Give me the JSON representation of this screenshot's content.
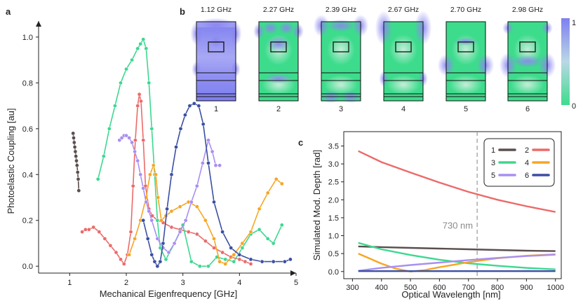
{
  "panel_labels": {
    "a": "a",
    "b": "b",
    "c": "c"
  },
  "colors": {
    "mode1": "#5a4e4e",
    "mode2": "#ec6a6a",
    "mode3": "#3dd890",
    "mode4": "#f6a623",
    "mode5": "#a98ff2",
    "mode6": "#3b4fa3",
    "map_low": "#3ddc8c",
    "map_high": "#7f7ff0"
  },
  "chart_data": [
    {
      "id": "a",
      "type": "scatter",
      "xlabel": "Mechanical Eigenfrequency [GHz]",
      "ylabel": "Photoelastic Coupling [au]",
      "xlim": [
        0.45,
        5.0
      ],
      "ylim": [
        -0.03,
        1.07
      ],
      "xticks": [
        "1",
        "2",
        "3",
        "4",
        "5"
      ],
      "yticks": [
        "0.0",
        "0.2",
        "0.4",
        "0.6",
        "0.8",
        "1.0"
      ],
      "series": [
        {
          "name": "1",
          "x": [
            1.06,
            1.07,
            1.08,
            1.09,
            1.1,
            1.11,
            1.12,
            1.13,
            1.14,
            1.15,
            1.16
          ],
          "y": [
            0.58,
            0.56,
            0.54,
            0.52,
            0.5,
            0.48,
            0.46,
            0.44,
            0.41,
            0.38,
            0.33
          ]
        },
        {
          "name": "2",
          "x": [
            1.22,
            1.28,
            1.34,
            1.42,
            1.52,
            1.62,
            1.72,
            1.82,
            1.9,
            1.96,
            2.02,
            2.08,
            2.12,
            2.16,
            2.2,
            2.23,
            2.26,
            2.3,
            2.34,
            2.4,
            2.46,
            2.55,
            2.65,
            2.8,
            2.95,
            3.1,
            3.25,
            3.4,
            3.55,
            3.7,
            3.85,
            4.0,
            4.1,
            4.2
          ],
          "y": [
            0.15,
            0.16,
            0.16,
            0.17,
            0.15,
            0.12,
            0.09,
            0.06,
            0.03,
            0.01,
            0.05,
            0.15,
            0.35,
            0.55,
            0.7,
            0.75,
            0.72,
            0.55,
            0.35,
            0.25,
            0.22,
            0.2,
            0.19,
            0.17,
            0.16,
            0.15,
            0.14,
            0.11,
            0.08,
            0.06,
            0.04,
            0.03,
            0.02,
            0.01
          ]
        },
        {
          "name": "3",
          "x": [
            1.5,
            1.6,
            1.7,
            1.8,
            1.9,
            2.0,
            2.1,
            2.2,
            2.25,
            2.3,
            2.35,
            2.4,
            2.45,
            2.5,
            2.55,
            2.6,
            2.7,
            2.85,
            3.0,
            3.15,
            3.3,
            3.45,
            3.6,
            3.75,
            3.9,
            4.05,
            4.2,
            4.35,
            4.5,
            4.6,
            4.75
          ],
          "y": [
            0.38,
            0.48,
            0.6,
            0.7,
            0.8,
            0.86,
            0.9,
            0.95,
            0.97,
            0.99,
            0.95,
            0.8,
            0.6,
            0.4,
            0.2,
            0.08,
            0.03,
            0.1,
            0.18,
            0.02,
            0.0,
            0.0,
            0.04,
            0.03,
            0.02,
            0.08,
            0.14,
            0.16,
            0.12,
            0.1,
            0.18
          ]
        },
        {
          "name": "4",
          "x": [
            2.05,
            2.15,
            2.25,
            2.35,
            2.42,
            2.48,
            2.52,
            2.56,
            2.62,
            2.7,
            2.8,
            2.95,
            3.1,
            3.25,
            3.4,
            3.55,
            3.65,
            3.75,
            3.9,
            4.05,
            4.2,
            4.35,
            4.5,
            4.65,
            4.75
          ],
          "y": [
            0.05,
            0.12,
            0.2,
            0.3,
            0.4,
            0.44,
            0.4,
            0.3,
            0.2,
            0.22,
            0.24,
            0.26,
            0.28,
            0.26,
            0.2,
            0.12,
            0.02,
            0.01,
            0.05,
            0.1,
            0.15,
            0.25,
            0.32,
            0.38,
            0.36
          ]
        },
        {
          "name": "5",
          "x": [
            1.88,
            1.92,
            1.96,
            2.0,
            2.05,
            2.1,
            2.15,
            2.2,
            2.25,
            2.3,
            2.35,
            2.4,
            2.45,
            2.55,
            2.65,
            2.75,
            2.85,
            2.95,
            3.05,
            3.15,
            3.25,
            3.35,
            3.45,
            3.52,
            3.58,
            3.65
          ],
          "y": [
            0.55,
            0.56,
            0.57,
            0.57,
            0.56,
            0.54,
            0.5,
            0.46,
            0.4,
            0.34,
            0.28,
            0.24,
            0.2,
            0.12,
            0.08,
            0.06,
            0.1,
            0.15,
            0.2,
            0.28,
            0.35,
            0.45,
            0.55,
            0.5,
            0.44,
            0.44
          ]
        },
        {
          "name": "6",
          "x": [
            2.3,
            2.38,
            2.45,
            2.5,
            2.55,
            2.6,
            2.65,
            2.72,
            2.8,
            2.88,
            2.96,
            3.04,
            3.12,
            3.2,
            3.28,
            3.36,
            3.45,
            3.55,
            3.7,
            3.85,
            4.0,
            4.2,
            4.4,
            4.6,
            4.8,
            4.9
          ],
          "y": [
            0.2,
            0.12,
            0.05,
            0.02,
            0.0,
            0.02,
            0.1,
            0.25,
            0.4,
            0.52,
            0.6,
            0.66,
            0.7,
            0.71,
            0.7,
            0.62,
            0.45,
            0.28,
            0.15,
            0.08,
            0.05,
            0.03,
            0.02,
            0.02,
            0.02,
            0.03
          ]
        }
      ]
    },
    {
      "id": "c",
      "type": "line",
      "xlabel": "Optical Wavelength [nm]",
      "ylabel": "Simulated Mod. Depth [rad]",
      "xlim": [
        270,
        1020
      ],
      "ylim": [
        -0.2,
        3.9
      ],
      "xticks": [
        "300",
        "400",
        "500",
        "600",
        "700",
        "800",
        "900",
        "1000"
      ],
      "yticks": [
        "0.0",
        "0.5",
        "1.0",
        "1.5",
        "2.0",
        "2.5",
        "3.0",
        "3.5"
      ],
      "vline": {
        "x": 730,
        "label": "730 nm"
      },
      "legend_placement": "top-right",
      "series": [
        {
          "name": "1",
          "x": [
            320,
            400,
            500,
            600,
            700,
            800,
            900,
            1000
          ],
          "y": [
            0.7,
            0.68,
            0.66,
            0.64,
            0.62,
            0.6,
            0.58,
            0.57
          ]
        },
        {
          "name": "2",
          "x": [
            320,
            400,
            500,
            600,
            700,
            800,
            900,
            1000
          ],
          "y": [
            3.36,
            3.05,
            2.76,
            2.48,
            2.22,
            2.0,
            1.82,
            1.66
          ]
        },
        {
          "name": "3",
          "x": [
            320,
            400,
            500,
            600,
            700,
            800,
            900,
            1000
          ],
          "y": [
            0.8,
            0.62,
            0.46,
            0.33,
            0.23,
            0.16,
            0.1,
            0.06
          ]
        },
        {
          "name": "4",
          "x": [
            320,
            400,
            450,
            500,
            550,
            600,
            700,
            800,
            900,
            1000
          ],
          "y": [
            0.5,
            0.22,
            0.08,
            0.0,
            0.04,
            0.12,
            0.26,
            0.37,
            0.44,
            0.48
          ]
        },
        {
          "name": "5",
          "x": [
            320,
            400,
            500,
            600,
            700,
            800,
            900,
            1000
          ],
          "y": [
            0.02,
            0.1,
            0.18,
            0.25,
            0.32,
            0.38,
            0.43,
            0.47
          ]
        },
        {
          "name": "6",
          "x": [
            320,
            400,
            500,
            600,
            700,
            800,
            900,
            1000
          ],
          "y": [
            0.01,
            0.01,
            0.01,
            0.01,
            0.01,
            0.01,
            0.01,
            0.01
          ]
        }
      ]
    },
    {
      "id": "b",
      "type": "heatmap",
      "colorbar_ticks": {
        "top": "1",
        "bottom": "0"
      },
      "modes": [
        {
          "index": "1",
          "freq": "1.12 GHz"
        },
        {
          "index": "2",
          "freq": "2.27 GHz"
        },
        {
          "index": "3",
          "freq": "2.39 GHz"
        },
        {
          "index": "4",
          "freq": "2.67 GHz"
        },
        {
          "index": "5",
          "freq": "2.70 GHz"
        },
        {
          "index": "6",
          "freq": "2.98 GHz"
        }
      ]
    }
  ]
}
